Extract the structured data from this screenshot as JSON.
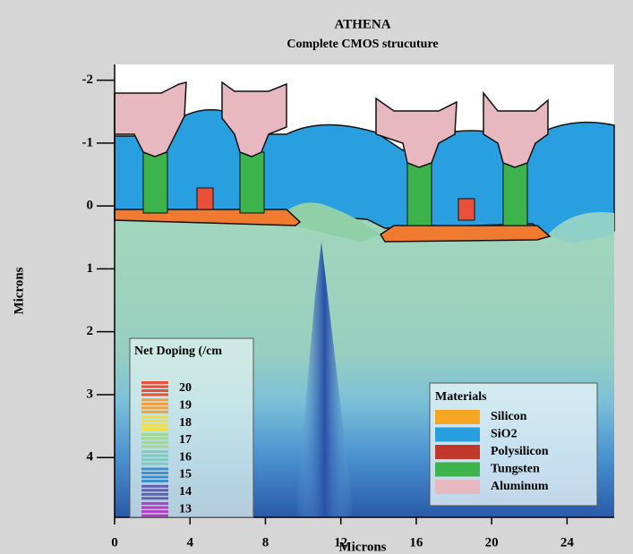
{
  "chart_data": {
    "type": "cross-section",
    "title": "ATHENA",
    "subtitle": "Complete CMOS strucuture",
    "x_label": "Microns",
    "y_label": "Microns",
    "xlim": [
      0,
      26.5
    ],
    "ylim": [
      -2.25,
      4.95
    ],
    "y_inverted": true,
    "xticks": [
      0,
      4,
      8,
      12,
      16,
      20,
      24
    ],
    "yticks": [
      -2,
      -1,
      0,
      1,
      2,
      3,
      4
    ],
    "doping_legend": {
      "title": "Net Doping (/cm",
      "levels": [
        {
          "value": 20,
          "color": "#e8503a"
        },
        {
          "value": 19,
          "color": "#f0a040"
        },
        {
          "value": 18,
          "color": "#f0e040"
        },
        {
          "value": 17,
          "color": "#a0d890"
        },
        {
          "value": 16,
          "color": "#80c8c0"
        },
        {
          "value": 15,
          "color": "#4090d0"
        },
        {
          "value": 14,
          "color": "#6060b0"
        },
        {
          "value": 13,
          "color": "#b040c0"
        }
      ]
    },
    "materials_legend": {
      "title": "Materials",
      "items": [
        {
          "name": "Silicon",
          "color": "#f5a623"
        },
        {
          "name": "SiO2",
          "color": "#2a9fe0"
        },
        {
          "name": "Polysilicon",
          "color": "#c0392b"
        },
        {
          "name": "Tungsten",
          "color": "#3cb44b"
        },
        {
          "name": "Aluminum",
          "color": "#e8b8c0"
        }
      ]
    }
  }
}
